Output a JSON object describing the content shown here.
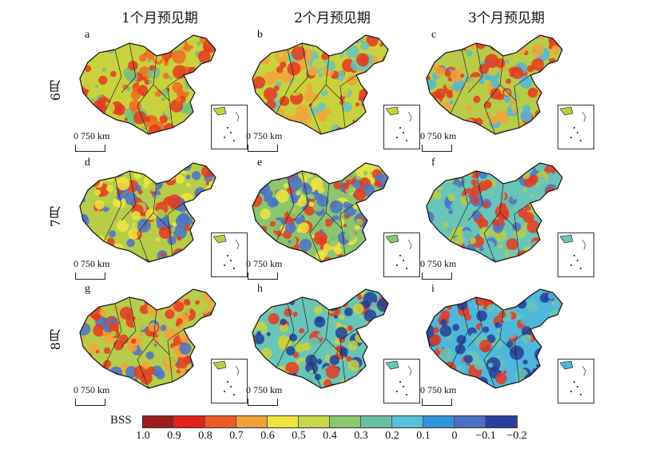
{
  "columns": [
    "1个月预见期",
    "2个月预见期",
    "3个月预见期"
  ],
  "rows": [
    "6月",
    "7月",
    "8月"
  ],
  "panels": [
    {
      "label": "a",
      "row": 0,
      "col": 0,
      "tone": [
        "#e53a20",
        "#f06c22",
        "#c9d23d",
        "#77c07c"
      ]
    },
    {
      "label": "b",
      "row": 0,
      "col": 1,
      "tone": [
        "#e53a20",
        "#f2a33a",
        "#c9d23d",
        "#69c5b8"
      ]
    },
    {
      "label": "c",
      "row": 0,
      "col": 2,
      "tone": [
        "#e53a20",
        "#f2a33a",
        "#b7cd4a",
        "#4fb7dc"
      ]
    },
    {
      "label": "d",
      "row": 1,
      "col": 0,
      "tone": [
        "#e53a20",
        "#f0e53f",
        "#b7cd4a",
        "#4a73c7"
      ]
    },
    {
      "label": "e",
      "row": 1,
      "col": 1,
      "tone": [
        "#e53a20",
        "#f0e53f",
        "#8cc66f",
        "#4a73c7"
      ]
    },
    {
      "label": "f",
      "row": 1,
      "col": 2,
      "tone": [
        "#e53a20",
        "#b7cd4a",
        "#69c5b8",
        "#4a73c7"
      ]
    },
    {
      "label": "g",
      "row": 2,
      "col": 0,
      "tone": [
        "#e53a20",
        "#f2a33a",
        "#b7cd4a",
        "#4a73c7"
      ]
    },
    {
      "label": "h",
      "row": 2,
      "col": 1,
      "tone": [
        "#e53a20",
        "#c9d23d",
        "#69c5b8",
        "#233f9a"
      ]
    },
    {
      "label": "i",
      "row": 2,
      "col": 2,
      "tone": [
        "#e53a20",
        "#69c5b8",
        "#4fb7dc",
        "#233f9a"
      ]
    }
  ],
  "scale": {
    "zero": "0",
    "distance": "750 km"
  },
  "legend": {
    "title": "BSS",
    "colors": [
      "#9b1f1f",
      "#e2231a",
      "#ee5a24",
      "#f2a03a",
      "#f0e53f",
      "#c8d84a",
      "#8cc66f",
      "#69bfa4",
      "#56c2d8",
      "#2f95dc",
      "#4a6fc4",
      "#2a3f9d"
    ],
    "ticks": [
      "1.0",
      "0.9",
      "0.8",
      "0.7",
      "0.6",
      "0.5",
      "0.4",
      "0.3",
      "0.2",
      "0.1",
      "0",
      "−0.1",
      "−0.2"
    ]
  }
}
